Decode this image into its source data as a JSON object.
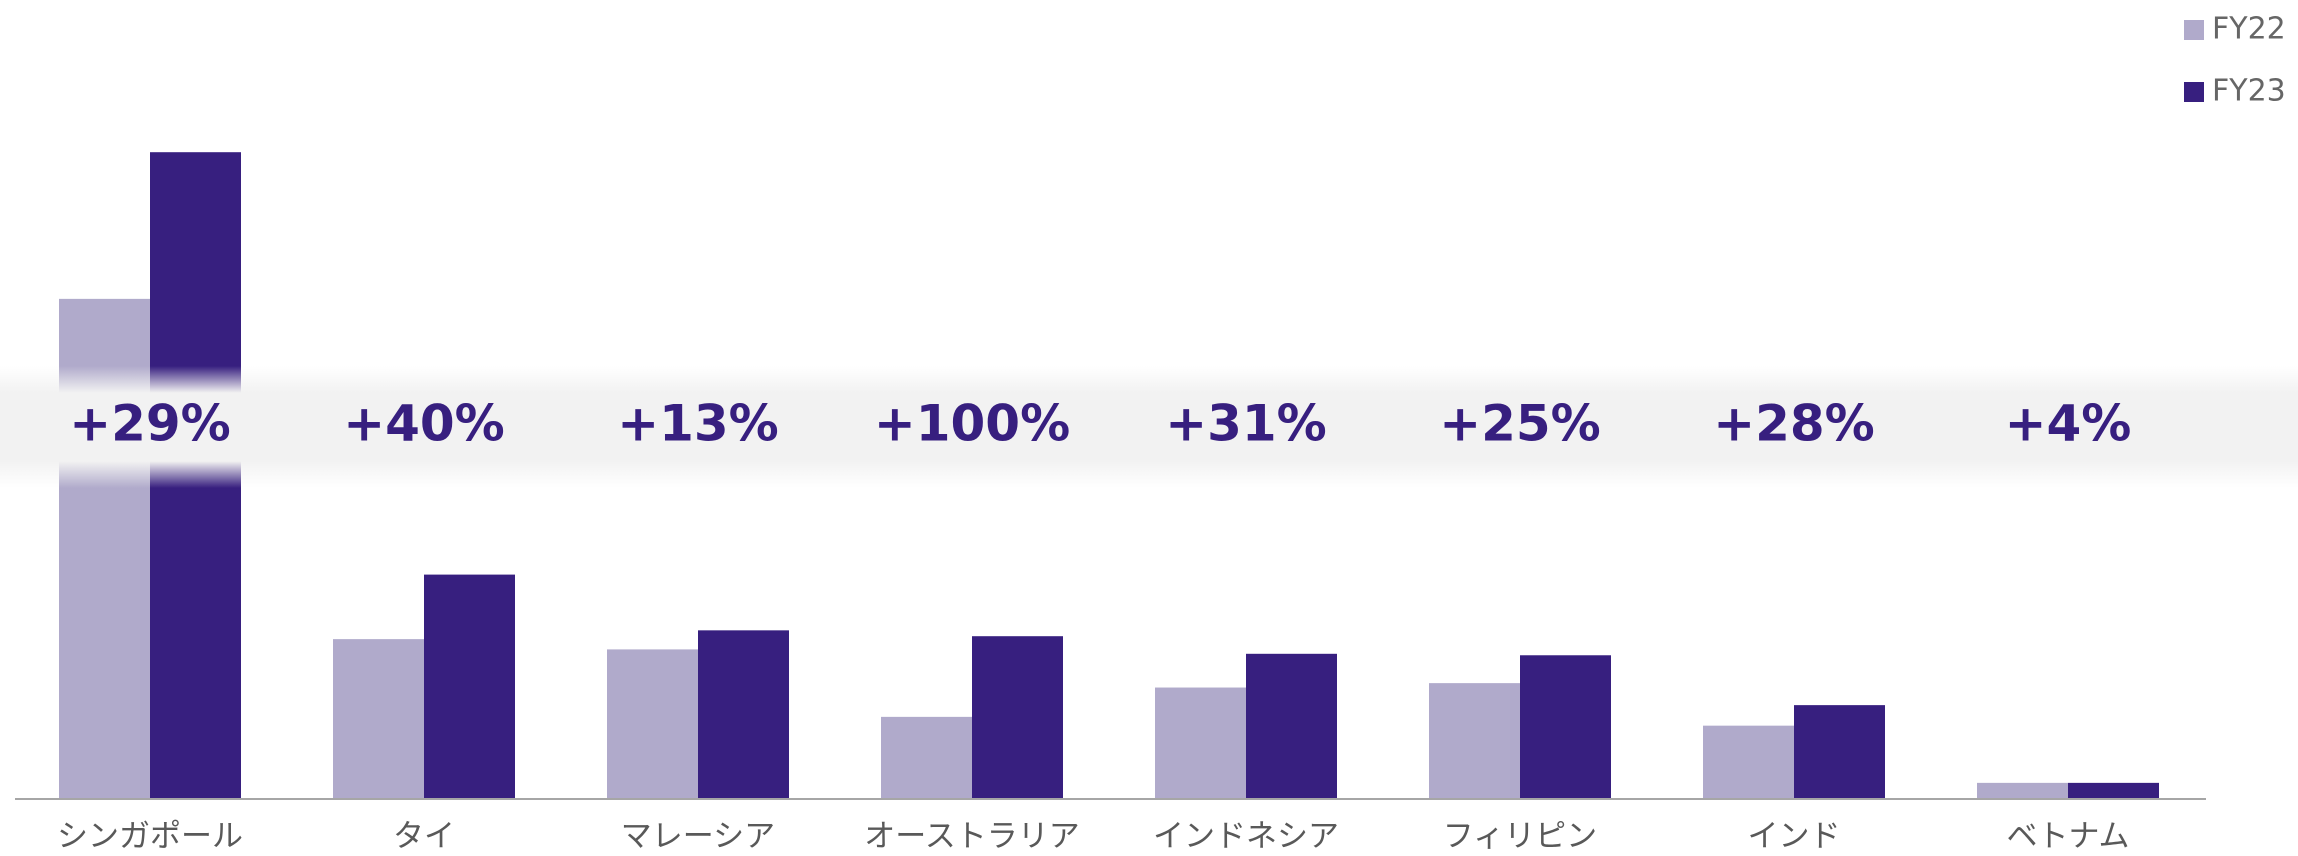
{
  "chart_data": {
    "type": "bar",
    "categories": [
      "シンガポール",
      "タイ",
      "マレーシア",
      "オーストラリア",
      "インドネシア",
      "フィリピン",
      "インド",
      "ベトナム"
    ],
    "series": [
      {
        "name": "FY22",
        "color": "#b0aacb",
        "values": [
          341,
          109,
          102,
          56,
          76,
          79,
          50,
          11
        ]
      },
      {
        "name": "FY23",
        "color": "#371f7f",
        "values": [
          441,
          153,
          115,
          111,
          99,
          98,
          64,
          11
        ]
      }
    ],
    "annotations": [
      "+29%",
      "+40%",
      "+13%",
      "+100%",
      "+31%",
      "+25%",
      "+28%",
      "+4%"
    ],
    "ylim": [
      0,
      450
    ],
    "legend": "top-right"
  }
}
